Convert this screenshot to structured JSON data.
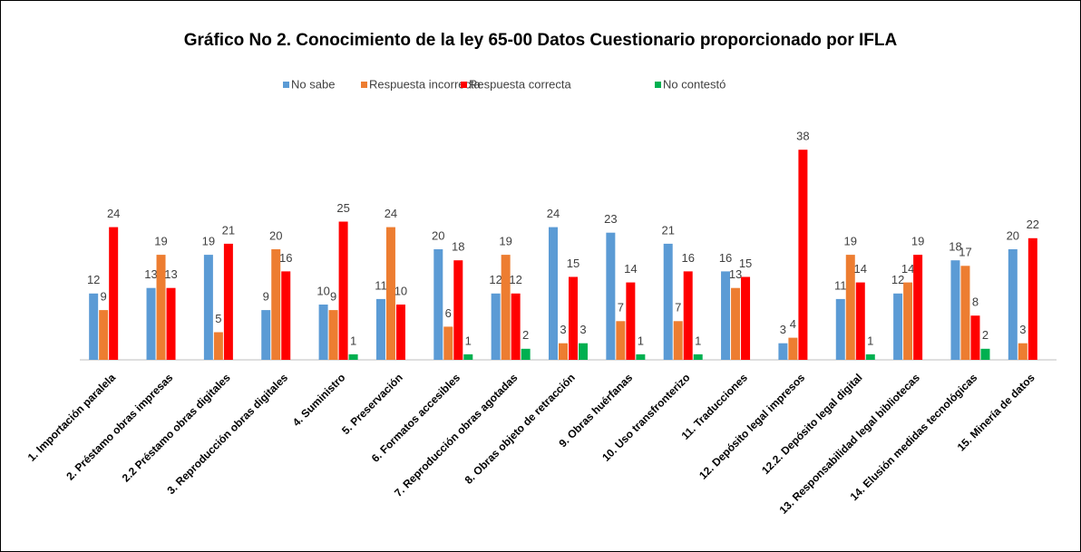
{
  "chart_data": {
    "type": "bar",
    "title": "Gráfico No 2. Conocimiento de la ley 65-00 Datos Cuestionario proporcionado por IFLA",
    "categories": [
      "1. Importación paralela",
      "2. Préstamo obras impresas",
      "2.2 Préstamo obras digitales",
      "3. Reproducción obras digitales",
      "4. Suministro",
      "5. Preservación",
      "6. Formatos accesibles",
      "7. Reproducción obras agotadas",
      "8. Obras objeto de retracción",
      "9. Obras huérfanas",
      "10. Uso transfronterizo",
      "11. Traducciones",
      "12. Depósito legal impresos",
      "12.2. Depósito legal digital",
      "13. Responsabilidad legal bibliotecas",
      "14. Elusión medidas tecnológicas",
      "15. Minería de datos"
    ],
    "series": [
      {
        "name": "No sabe",
        "color": "#5b9bd5",
        "values": [
          12,
          13,
          19,
          9,
          10,
          11,
          20,
          12,
          24,
          23,
          21,
          16,
          3,
          11,
          12,
          18,
          20
        ]
      },
      {
        "name": "Respuesta incorrecta",
        "color": "#ed7d31",
        "values": [
          9,
          19,
          5,
          20,
          9,
          24,
          6,
          19,
          3,
          7,
          7,
          13,
          4,
          19,
          14,
          17,
          3
        ]
      },
      {
        "name": "Respuesta correcta",
        "color": "#ff0000",
        "values": [
          24,
          13,
          21,
          16,
          25,
          10,
          18,
          12,
          15,
          14,
          16,
          15,
          38,
          14,
          19,
          8,
          22
        ]
      },
      {
        "name": "No contestó",
        "color": "#00b050",
        "values": [
          null,
          null,
          null,
          null,
          1,
          null,
          1,
          2,
          3,
          1,
          1,
          null,
          null,
          1,
          null,
          2,
          null
        ]
      }
    ],
    "ylim": [
      0,
      40
    ],
    "legend": "top"
  }
}
